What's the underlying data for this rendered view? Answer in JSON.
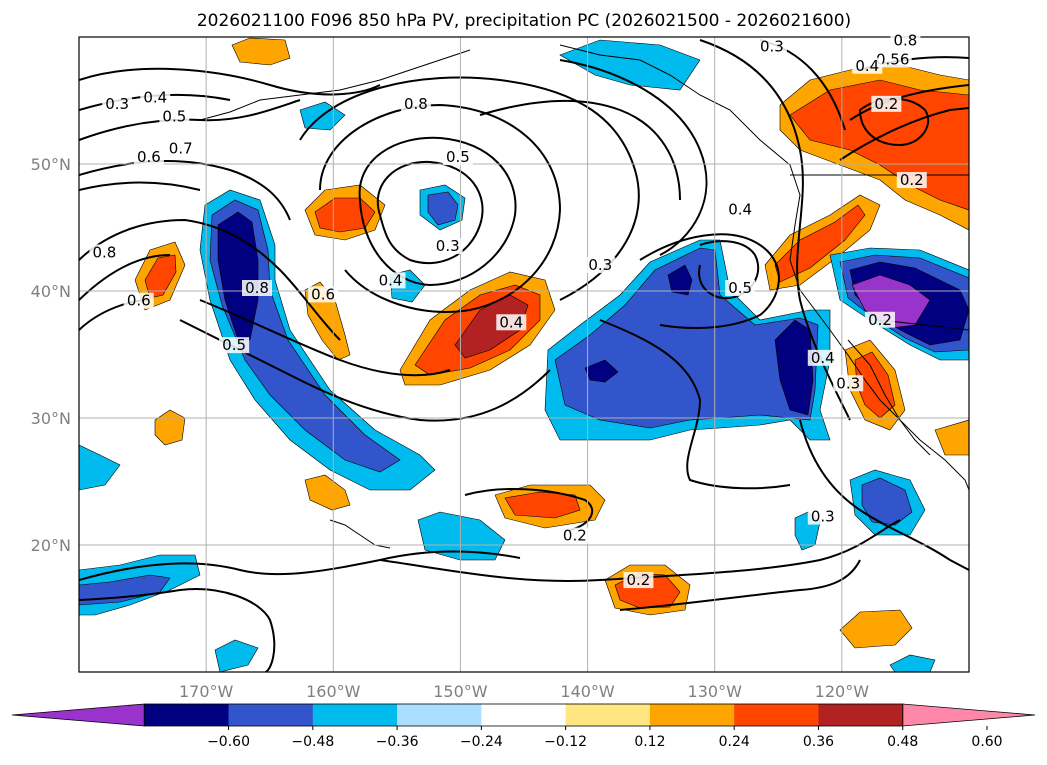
{
  "title": "2026021100 F096 850 hPa PV, precipitation PC (2026021500 - 2026021600)",
  "map": {
    "projection": "PlateCarree",
    "lon_range": [
      -180,
      -110
    ],
    "lat_range": [
      10,
      60
    ],
    "lon_ticks": [
      {
        "value": -170,
        "label": "170°W"
      },
      {
        "value": -160,
        "label": "160°W"
      },
      {
        "value": -150,
        "label": "150°W"
      },
      {
        "value": -140,
        "label": "140°W"
      },
      {
        "value": -130,
        "label": "130°W"
      },
      {
        "value": -120,
        "label": "120°W"
      }
    ],
    "lat_ticks": [
      {
        "value": 20,
        "label": "20°N"
      },
      {
        "value": 30,
        "label": "30°N"
      },
      {
        "value": 40,
        "label": "40°N"
      },
      {
        "value": 50,
        "label": "50°N"
      }
    ],
    "grid": true
  },
  "colorbar": {
    "extend": "both",
    "levels": [
      "−0.60",
      "−0.48",
      "−0.36",
      "−0.24",
      "−0.12",
      "0.12",
      "0.24",
      "0.36",
      "0.48",
      "0.60"
    ],
    "colors": [
      "#9933cc",
      "#000080",
      "#3355cc",
      "#00bbee",
      "#aadfff",
      "#ffffff",
      "#ffe680",
      "#ffa500",
      "#ff4500",
      "#b22222",
      "#ff88aa"
    ]
  },
  "contour_labels": [
    {
      "text": "0.3",
      "lon": -177,
      "lat": 54.5
    },
    {
      "text": "0.4",
      "lon": -174,
      "lat": 55
    },
    {
      "text": "0.5",
      "lon": -172.5,
      "lat": 53.5
    },
    {
      "text": "0.6",
      "lon": -174.5,
      "lat": 50.3
    },
    {
      "text": "0.7",
      "lon": -172,
      "lat": 51
    },
    {
      "text": "0.8",
      "lon": -178,
      "lat": 42.8
    },
    {
      "text": "0.6",
      "lon": -175.3,
      "lat": 39
    },
    {
      "text": "0.8",
      "lon": -166,
      "lat": 40
    },
    {
      "text": "0.8",
      "lon": -153.5,
      "lat": 54.5
    },
    {
      "text": "0.5",
      "lon": -150.2,
      "lat": 50.3
    },
    {
      "text": "0.3",
      "lon": -151,
      "lat": 43.3
    },
    {
      "text": "0.4",
      "lon": -155.5,
      "lat": 40.6
    },
    {
      "text": "0.5",
      "lon": -167.8,
      "lat": 35.5
    },
    {
      "text": "0.6",
      "lon": -160.8,
      "lat": 39.5
    },
    {
      "text": "0.4",
      "lon": -146,
      "lat": 37.3
    },
    {
      "text": "0.3",
      "lon": -139,
      "lat": 41.8
    },
    {
      "text": "0.4",
      "lon": -128,
      "lat": 46.2
    },
    {
      "text": "0.5",
      "lon": -128,
      "lat": 40
    },
    {
      "text": "0.3",
      "lon": -125.5,
      "lat": 59
    },
    {
      "text": "0.4",
      "lon": -121.5,
      "lat": 34.5
    },
    {
      "text": "0.3",
      "lon": -119.5,
      "lat": 32.5
    },
    {
      "text": "0.2",
      "lon": -117,
      "lat": 37.5
    },
    {
      "text": "0.2",
      "lon": -116.5,
      "lat": 54.5
    },
    {
      "text": "0.2",
      "lon": -114.5,
      "lat": 48.5
    },
    {
      "text": "0.8",
      "lon": -115,
      "lat": 59.5
    },
    {
      "text": "0.56",
      "lon": -116,
      "lat": 58
    },
    {
      "text": "0.4",
      "lon": -118,
      "lat": 57.5
    },
    {
      "text": "0.3",
      "lon": -121.5,
      "lat": 22
    },
    {
      "text": "0.2",
      "lon": -141,
      "lat": 20.5
    },
    {
      "text": "0.2",
      "lon": -136,
      "lat": 17
    }
  ]
}
